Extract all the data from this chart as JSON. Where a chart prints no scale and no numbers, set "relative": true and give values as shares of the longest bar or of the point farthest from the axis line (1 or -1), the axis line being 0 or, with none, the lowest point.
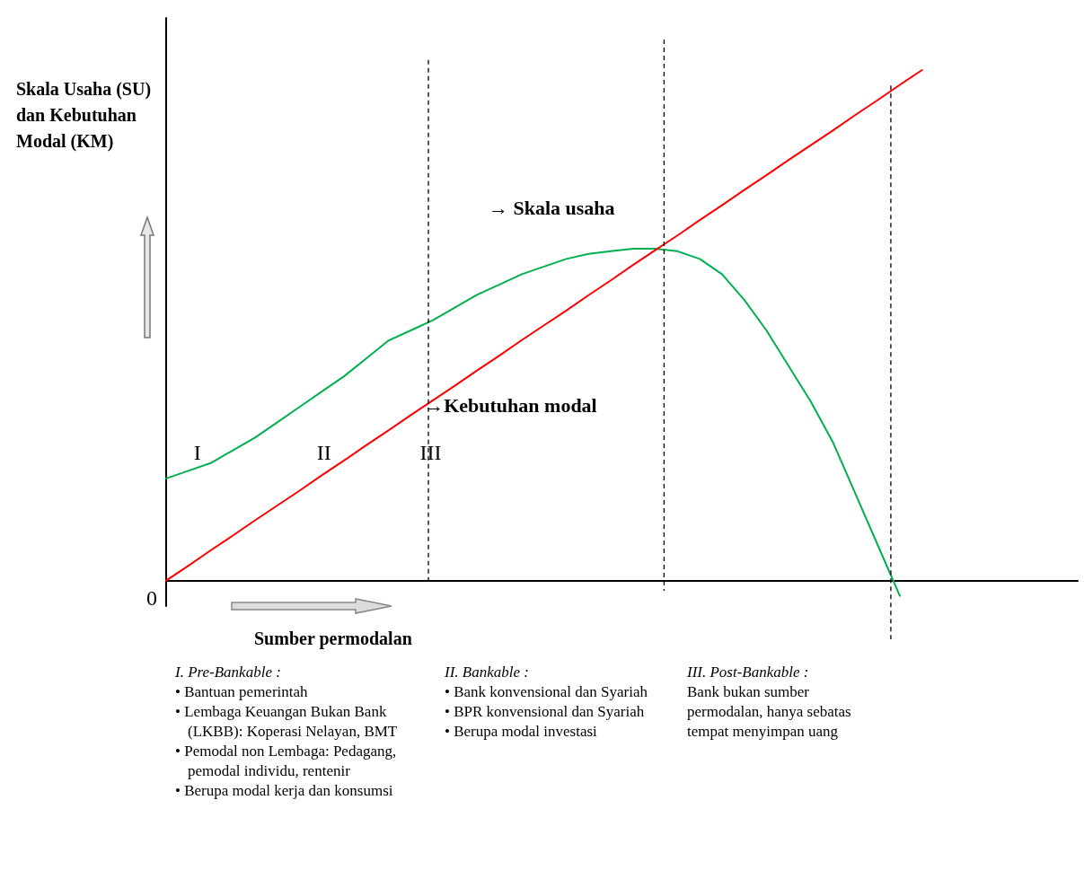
{
  "chart_data": {
    "type": "line",
    "relative": true,
    "xlabel": "Sumber permodalan",
    "ylabel": "Skala Usaha (SU) dan Kebutuhan Modal (KM)",
    "categories": [
      null,
      null,
      null,
      null,
      null,
      null,
      null,
      null,
      null,
      null,
      null,
      null,
      null,
      null,
      null,
      null,
      null,
      null,
      null,
      null,
      null,
      null,
      null,
      null,
      null,
      null,
      null,
      null,
      null,
      null,
      null,
      null,
      null,
      null,
      null
    ],
    "series": [
      {
        "name": "→ Skala usaha",
        "color": "#00b050",
        "values": [
          0.2,
          0.215,
          0.23,
          0.255,
          0.28,
          0.31,
          0.34,
          0.37,
          0.4,
          0.435,
          0.47,
          0.49,
          0.51,
          0.535,
          0.56,
          0.58,
          0.6,
          0.615,
          0.63,
          0.64,
          0.645,
          0.65,
          0.65,
          0.645,
          0.63,
          0.6,
          0.55,
          0.49,
          0.42,
          0.35,
          0.27,
          0.17,
          0.07,
          -0.03,
          null
        ]
      },
      {
        "name": "→Kebutuhan modal",
        "color": "#ff0000",
        "values": [
          0,
          0.029,
          0.059,
          0.088,
          0.118,
          0.147,
          0.176,
          0.206,
          0.235,
          0.265,
          0.294,
          0.324,
          0.353,
          0.382,
          0.412,
          0.441,
          0.471,
          0.5,
          0.529,
          0.559,
          0.588,
          0.618,
          0.647,
          0.676,
          0.706,
          0.735,
          0.765,
          0.794,
          0.824,
          0.853,
          0.882,
          0.912,
          0.941,
          0.971,
          1
        ]
      }
    ],
    "annotations": [
      "0",
      "I",
      "II",
      "III",
      "I. Pre-Bankable :\n• Bantuan pemerintah\n• Lembaga Keuangan Bukan Bank (LKBB): Koperasi Nelayan, BMT\n• Pemodal non Lembaga: Pedagang, pemodal individu, rentenir\n• Berupa modal kerja dan konsumsi",
      "II. Bankable :\n• Bank konvensional dan Syariah\n• BPR konvensional dan Syariah\n• Berupa modal investasi",
      "III. Post-Bankable :\nBank bukan sumber permodalan, hanya sebatas tempat menyimpan uang"
    ],
    "legend": false,
    "marker": "none",
    "line_style": "solid",
    "grid": false
  }
}
